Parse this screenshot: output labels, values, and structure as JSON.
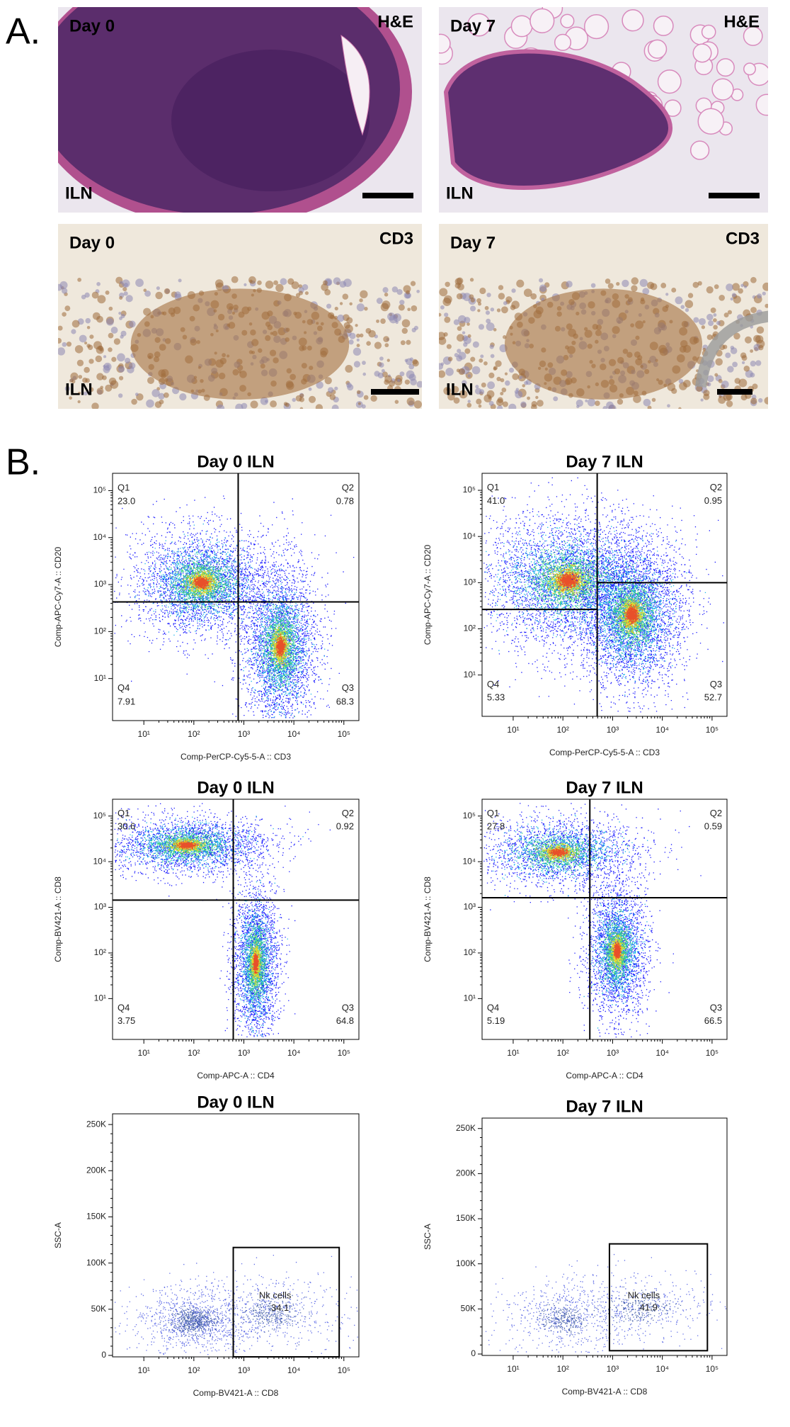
{
  "figure": {
    "panel_a": {
      "label": "A.",
      "images": [
        {
          "top_left": "Day 0",
          "top_right": "H&E",
          "bottom_left": "ILN"
        },
        {
          "top_left": "Day 7",
          "top_right": "H&E",
          "bottom_left": "ILN"
        },
        {
          "top_left": "Day 0",
          "top_right": "CD3",
          "bottom_left": "ILN"
        },
        {
          "top_left": "Day 7",
          "top_right": "CD3",
          "bottom_left": "ILN"
        }
      ]
    },
    "panel_b": {
      "label": "B.",
      "plots": [
        {
          "title": "Day 0 ILN",
          "x_label": "Comp-PerCP-Cy5-5-A :: CD3",
          "y_label": "Comp-APC-Cy7-A :: CD20",
          "x_ticks": [
            "10¹",
            "10²",
            "10³",
            "10⁴",
            "10⁵"
          ],
          "y_ticks": [
            "10⁵",
            "10⁴",
            "10³",
            "10²",
            "10¹"
          ],
          "quadrants": [
            {
              "name": "Q1",
              "value": "23.0"
            },
            {
              "name": "Q2",
              "value": "0.78"
            },
            {
              "name": "Q3",
              "value": "68.3"
            },
            {
              "name": "Q4",
              "value": "7.91"
            }
          ]
        },
        {
          "title": "Day 7 ILN",
          "x_label": "Comp-PerCP-Cy5-5-A :: CD3",
          "y_label": "Comp-APC-Cy7-A :: CD20",
          "x_ticks": [
            "10¹",
            "10²",
            "10³",
            "10⁴",
            "10⁵"
          ],
          "y_ticks": [
            "10⁵",
            "10⁴",
            "10³",
            "10²",
            "10¹"
          ],
          "quadrants": [
            {
              "name": "Q1",
              "value": "41.0"
            },
            {
              "name": "Q2",
              "value": "0.95"
            },
            {
              "name": "Q3",
              "value": "52.7"
            },
            {
              "name": "Q4",
              "value": "5.33"
            }
          ]
        },
        {
          "title": "Day 0 ILN",
          "x_label": "Comp-APC-A :: CD4",
          "y_label": "Comp-BV421-A :: CD8",
          "x_ticks": [
            "10¹",
            "10²",
            "10³",
            "10⁴",
            "10⁵"
          ],
          "y_ticks": [
            "10⁵",
            "10⁴",
            "10³",
            "10²",
            "10¹"
          ],
          "quadrants": [
            {
              "name": "Q1",
              "value": "30.6"
            },
            {
              "name": "Q2",
              "value": "0.92"
            },
            {
              "name": "Q3",
              "value": "64.8"
            },
            {
              "name": "Q4",
              "value": "3.75"
            }
          ]
        },
        {
          "title": "Day 7 ILN",
          "x_label": "Comp-APC-A :: CD4",
          "y_label": "Comp-BV421-A :: CD8",
          "x_ticks": [
            "10¹",
            "10²",
            "10³",
            "10⁴",
            "10⁵"
          ],
          "y_ticks": [
            "10⁵",
            "10⁴",
            "10³",
            "10²",
            "10¹"
          ],
          "quadrants": [
            {
              "name": "Q1",
              "value": "27.8"
            },
            {
              "name": "Q2",
              "value": "0.59"
            },
            {
              "name": "Q3",
              "value": "66.5"
            },
            {
              "name": "Q4",
              "value": "5.19"
            }
          ]
        },
        {
          "title": "Day 0 ILN",
          "x_label": "Comp-BV421-A :: CD8",
          "y_label": "SSC-A",
          "x_ticks": [
            "10¹",
            "10²",
            "10³",
            "10⁴",
            "10⁵"
          ],
          "y_ticks": [
            "250K",
            "200K",
            "150K",
            "100K",
            "50K",
            "0"
          ],
          "gate": {
            "name": "Nk cells",
            "value": "34.1"
          }
        },
        {
          "title": "Day 7 ILN",
          "x_label": "Comp-BV421-A :: CD8",
          "y_label": "SSC-A",
          "x_ticks": [
            "10¹",
            "10²",
            "10³",
            "10⁴",
            "10⁵"
          ],
          "y_ticks": [
            "250K",
            "200K",
            "150K",
            "100K",
            "50K",
            "0"
          ],
          "gate": {
            "name": "Nk cells",
            "value": "41.9"
          }
        }
      ]
    }
  }
}
